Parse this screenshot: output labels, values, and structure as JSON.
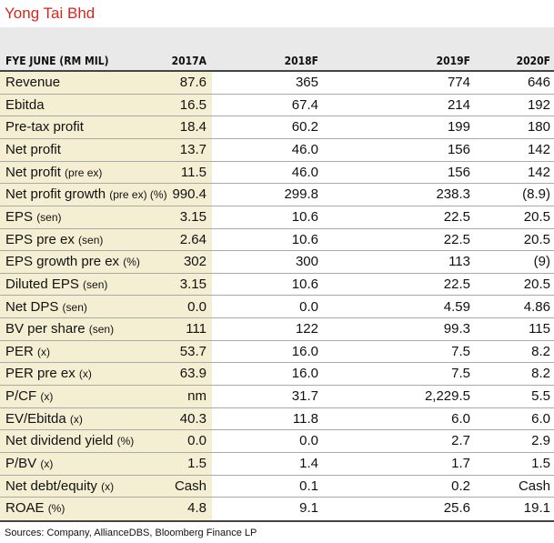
{
  "title": "Yong Tai Bhd",
  "header": {
    "label": "FYE JUNE (RM MIL)",
    "years": [
      "2017A",
      "2018F",
      "2019F",
      "2020F"
    ]
  },
  "rows": [
    {
      "label": "Revenue",
      "suffix": "",
      "values": [
        "87.6",
        "365",
        "774",
        "646"
      ]
    },
    {
      "label": "Ebitda",
      "suffix": "",
      "values": [
        "16.5",
        "67.4",
        "214",
        "192"
      ]
    },
    {
      "label": "Pre-tax profit",
      "suffix": "",
      "values": [
        "18.4",
        "60.2",
        "199",
        "180"
      ]
    },
    {
      "label": "Net profit",
      "suffix": "",
      "values": [
        "13.7",
        "46.0",
        "156",
        "142"
      ]
    },
    {
      "label": "Net profit",
      "suffix": "(pre ex)",
      "values": [
        "11.5",
        "46.0",
        "156",
        "142"
      ]
    },
    {
      "label": "Net profit growth",
      "suffix": "(pre ex) (%)",
      "values": [
        "990.4",
        "299.8",
        "238.3",
        "(8.9)"
      ]
    },
    {
      "label": "EPS",
      "suffix": "(sen)",
      "values": [
        "3.15",
        "10.6",
        "22.5",
        "20.5"
      ]
    },
    {
      "label": "EPS pre ex",
      "suffix": "(sen)",
      "values": [
        "2.64",
        "10.6",
        "22.5",
        "20.5"
      ]
    },
    {
      "label": "EPS growth pre ex",
      "suffix": "(%)",
      "values": [
        "302",
        "300",
        "113",
        "(9)"
      ]
    },
    {
      "label": "Diluted EPS",
      "suffix": "(sen)",
      "values": [
        "3.15",
        "10.6",
        "22.5",
        "20.5"
      ]
    },
    {
      "label": "Net DPS",
      "suffix": "(sen)",
      "values": [
        "0.0",
        "0.0",
        "4.59",
        "4.86"
      ]
    },
    {
      "label": "BV per share",
      "suffix": "(sen)",
      "values": [
        "111",
        "122",
        "99.3",
        "115"
      ]
    },
    {
      "label": "PER",
      "suffix": "(x)",
      "values": [
        "53.7",
        "16.0",
        "7.5",
        "8.2"
      ]
    },
    {
      "label": "PER pre ex",
      "suffix": "(x)",
      "values": [
        "63.9",
        "16.0",
        "7.5",
        "8.2"
      ]
    },
    {
      "label": "P/CF",
      "suffix": "(x)",
      "values": [
        "nm",
        "31.7",
        "2,229.5",
        "5.5"
      ]
    },
    {
      "label": "EV/Ebitda",
      "suffix": "(x)",
      "values": [
        "40.3",
        "11.8",
        "6.0",
        "6.0"
      ]
    },
    {
      "label": "Net dividend yield",
      "suffix": "(%)",
      "values": [
        "0.0",
        "0.0",
        "2.7",
        "2.9"
      ]
    },
    {
      "label": "P/BV",
      "suffix": "(x)",
      "values": [
        "1.5",
        "1.4",
        "1.7",
        "1.5"
      ]
    },
    {
      "label": "Net debt/equity",
      "suffix": "(x)",
      "values": [
        "Cash",
        "0.1",
        "0.2",
        "Cash"
      ]
    },
    {
      "label": "ROAE",
      "suffix": "(%)",
      "values": [
        "4.8",
        "9.1",
        "25.6",
        "19.1"
      ]
    }
  ],
  "source": "Sources: Company, AllianceDBS, Bloomberg Finance LP"
}
